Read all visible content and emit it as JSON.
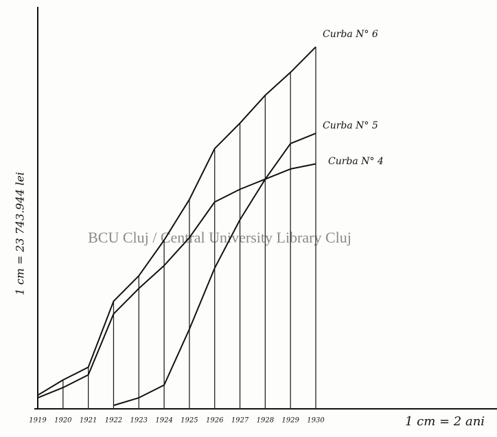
{
  "chart_data": {
    "type": "line",
    "title": "BCU Cluj / Central University Library Cluj",
    "y_label": "1 cm = 23 743.944 lei",
    "x_label": "1 cm = 2 ani",
    "categories": [
      "1919",
      "1920",
      "1921",
      "1922",
      "1923",
      "1924",
      "1925",
      "1926",
      "1927",
      "1928",
      "1929",
      "1930"
    ],
    "ylim": [
      0,
      15
    ],
    "series": [
      {
        "name": "Curba N° 6",
        "color": "#111111",
        "values": [
          0.4,
          1.0,
          1.5,
          4.1,
          5.1,
          6.5,
          8.1,
          10.1,
          11.1,
          12.2,
          13.1,
          14.1
        ]
      },
      {
        "name": "Curba N° 5",
        "color": "#111111",
        "values": [
          null,
          null,
          null,
          0.0,
          0.3,
          0.8,
          3.0,
          5.4,
          7.3,
          8.9,
          10.3,
          10.7
        ]
      },
      {
        "name": "Curba N° 4",
        "color": "#111111",
        "values": [
          0.3,
          0.7,
          1.2,
          3.6,
          4.6,
          5.5,
          6.6,
          8.0,
          8.5,
          8.9,
          9.3,
          9.5
        ]
      }
    ]
  }
}
